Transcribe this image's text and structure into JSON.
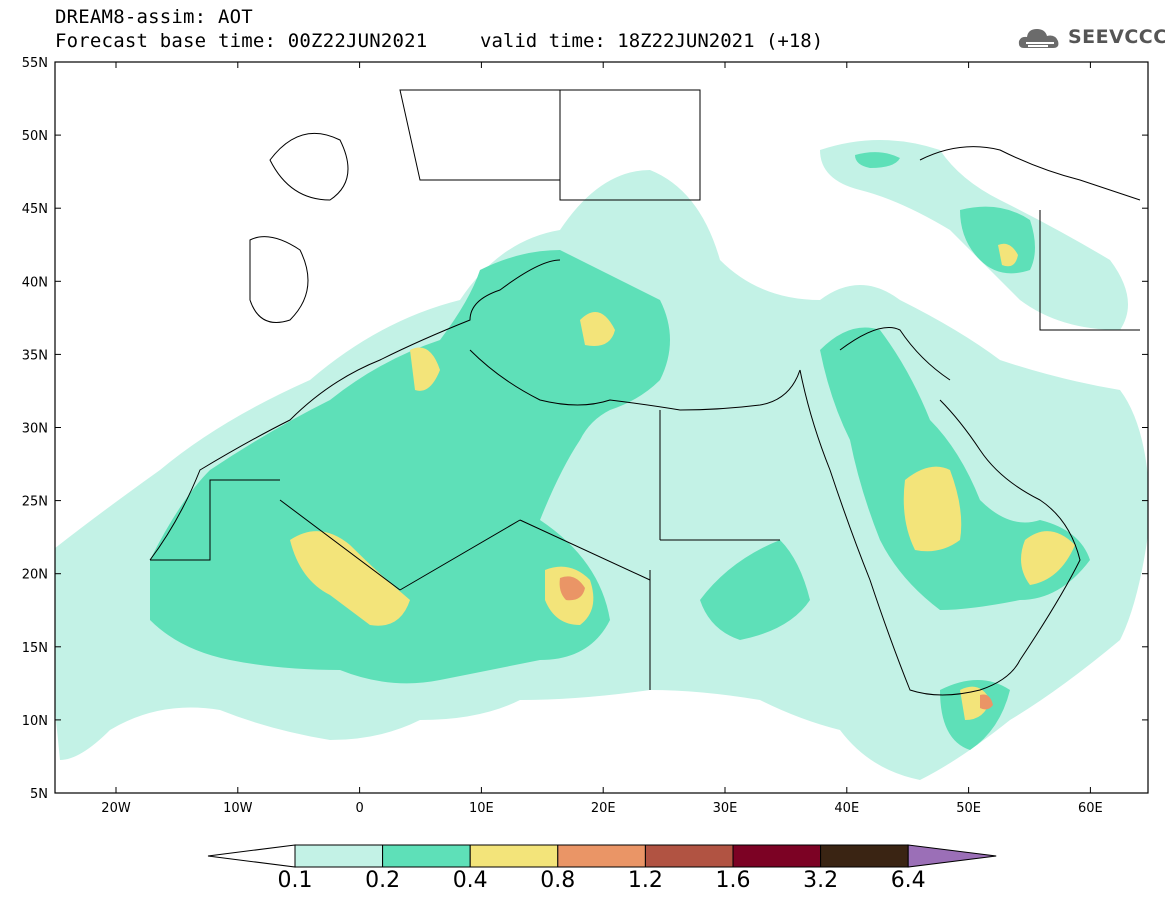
{
  "header": {
    "line1": "DREAM8-assim: AOT",
    "line2": "Forecast base time: 00Z22JUN2021",
    "valid": "valid time: 18Z22JUN2021 (+18)"
  },
  "logo": {
    "text": "SEEVCCC",
    "icon": "cloud-icon"
  },
  "axes": {
    "lat_labels": [
      "55N",
      "50N",
      "45N",
      "40N",
      "35N",
      "30N",
      "25N",
      "20N",
      "15N",
      "10N",
      "5N"
    ],
    "lon_labels": [
      "20W",
      "10W",
      "0",
      "10E",
      "20E",
      "30E",
      "40E",
      "50E",
      "60E"
    ]
  },
  "colorbar": {
    "labels": [
      "0.1",
      "0.2",
      "0.4",
      "0.8",
      "1.2",
      "1.6",
      "3.2",
      "6.4"
    ],
    "colors": [
      "#c3f2e6",
      "#5ee0b8",
      "#f3e47a",
      "#ea9566",
      "#b15342",
      "#7c0224",
      "#3a2413",
      "#9b6fb7"
    ]
  },
  "palette": {
    "low": "#c3f2e6",
    "mid": "#5ee0b8",
    "high": "#f3e47a",
    "peak": "#ea9566",
    "max": "#e0776a"
  }
}
